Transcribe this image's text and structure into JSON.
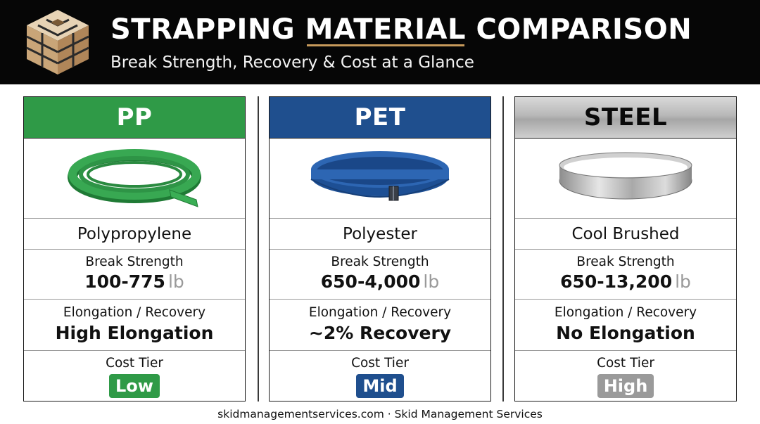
{
  "header": {
    "title_before": "STRAPPING ",
    "title_underlined": "MATERIAL",
    "title_after": " COMPARISON",
    "subtitle": "Break Strength, Recovery & Cost at a Glance",
    "logo_icon": "skid-pallet-logo-icon"
  },
  "panels": [
    {
      "id": "pp",
      "heading": "PP",
      "name": "Polypropylene",
      "strength_label": "Break Strength",
      "strength_value": "100-775",
      "strength_unit": "lb",
      "elongation_label": "Elongation / Recovery",
      "elongation_value": "High Elongation",
      "cost_label": "Cost Tier",
      "cost_value": "Low",
      "color": "#2f9a47",
      "icon": "green-strap-coil-icon"
    },
    {
      "id": "pet",
      "heading": "PET",
      "name": "Polyester",
      "strength_label": "Break Strength",
      "strength_value": "650-4,000",
      "strength_unit": "lb",
      "elongation_label": "Elongation / Recovery",
      "elongation_value": "~2% Recovery",
      "cost_label": "Cost Tier",
      "cost_value": "Mid",
      "color": "#1f4f8e",
      "icon": "blue-strap-loop-icon"
    },
    {
      "id": "steel",
      "heading": "STEEL",
      "name": "Cool Brushed",
      "strength_label": "Break Strength",
      "strength_value": "650-13,200",
      "strength_unit": "lb",
      "elongation_label": "Elongation / Recovery",
      "elongation_value": "No Elongation",
      "cost_label": "Cost Tier",
      "cost_value": "High",
      "color": "#9a9a9a",
      "icon": "steel-band-icon"
    }
  ],
  "footer": {
    "text": "skidmanagementservices.com · Skid Management Services"
  }
}
